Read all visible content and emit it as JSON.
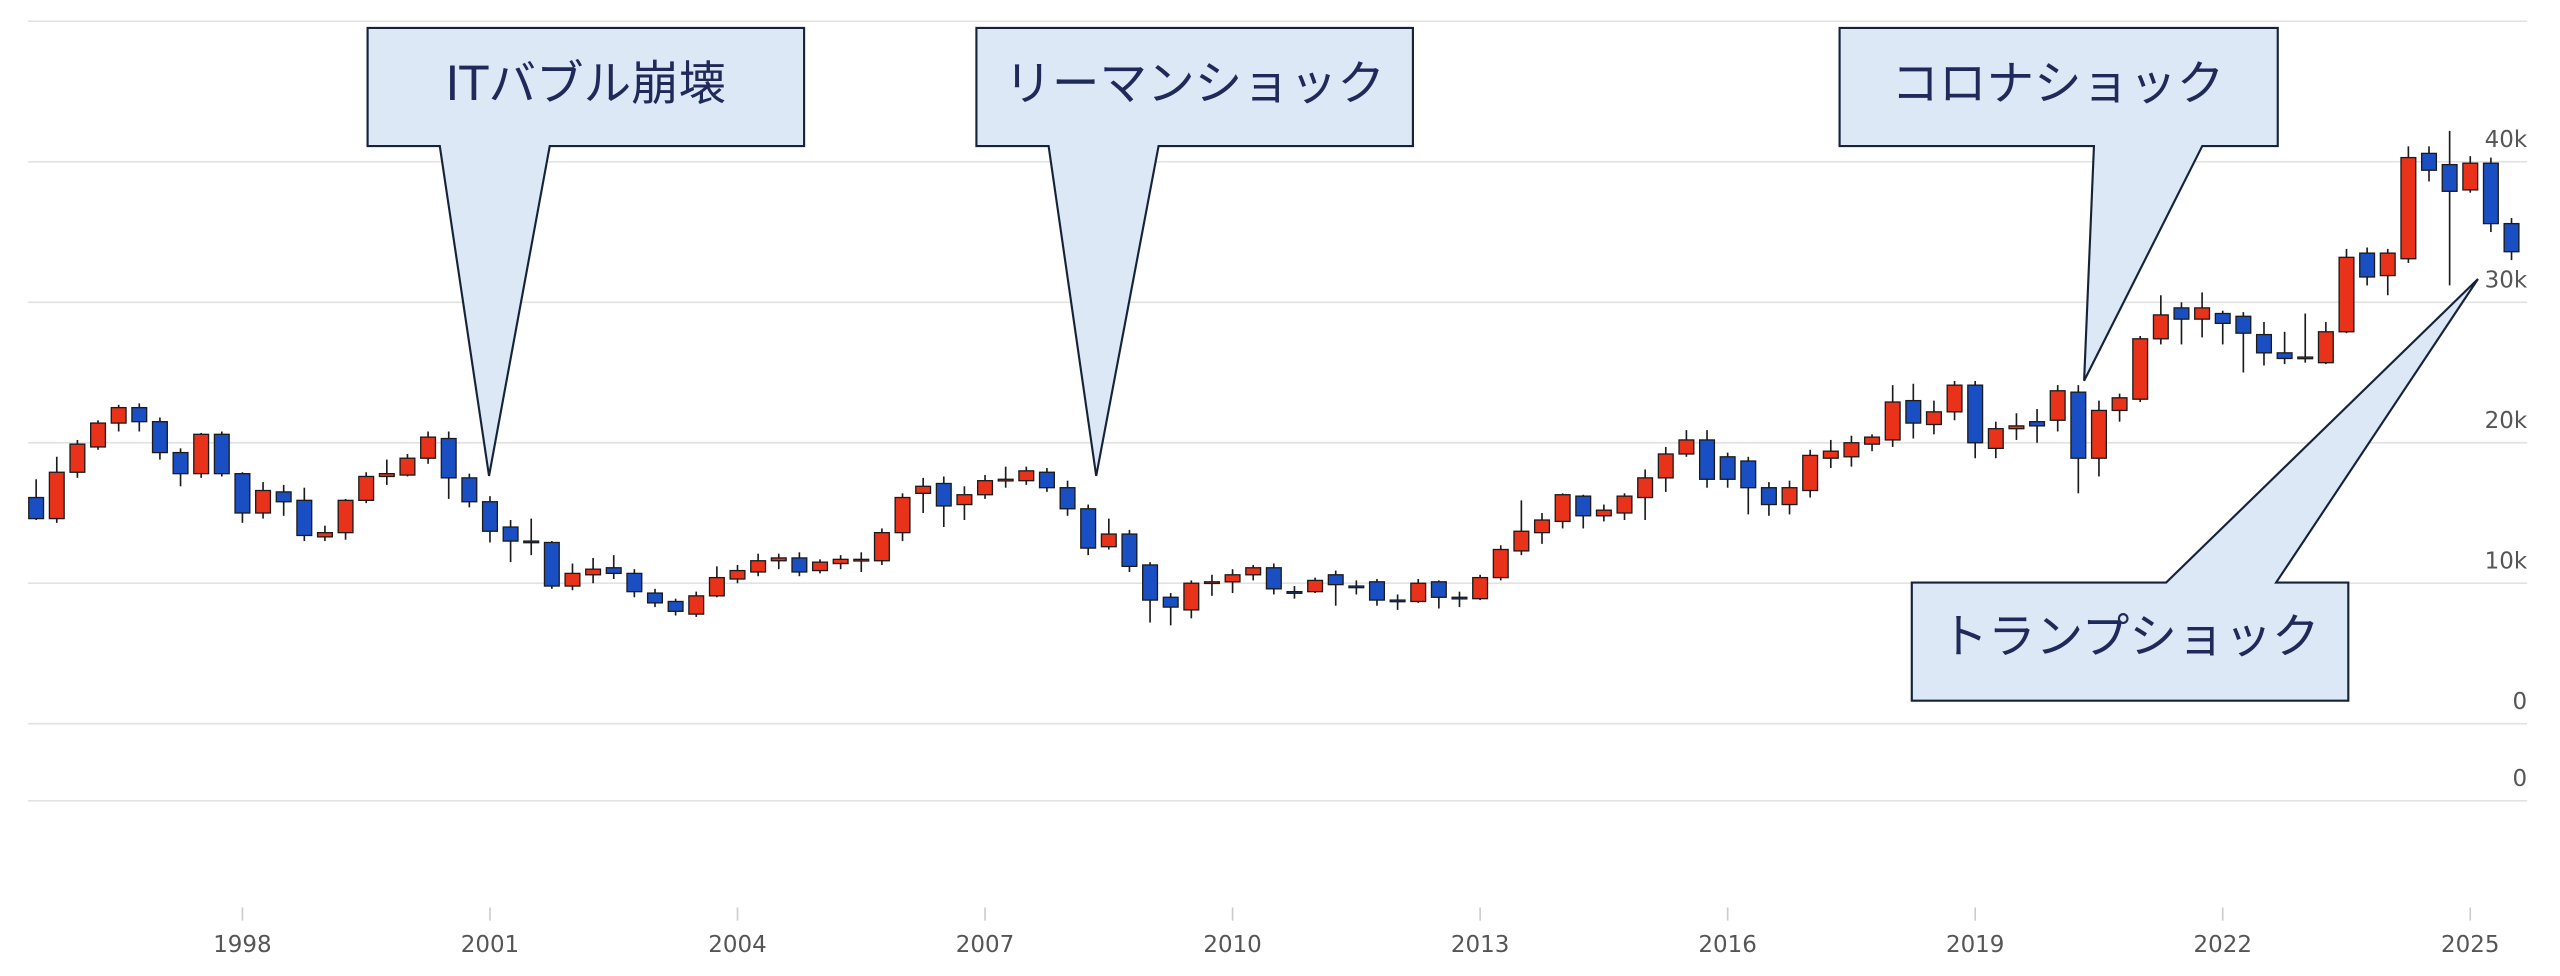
{
  "chart_data": {
    "type": "candlestick",
    "up_color": "#e8321a",
    "down_color": "#1a4fc4",
    "grid": true,
    "xlim": [
      1995.4,
      2025.65
    ],
    "xticks": [
      1998,
      2001,
      2004,
      2007,
      2010,
      2013,
      2016,
      2019,
      2022,
      2025
    ],
    "ylim": [
      0,
      50000
    ],
    "yticks": [
      {
        "value": 0,
        "label": "0"
      },
      {
        "value": 10000,
        "label": "10k"
      },
      {
        "value": 20000,
        "label": "20k"
      },
      {
        "value": 30000,
        "label": "30k"
      },
      {
        "value": 40000,
        "label": "40k"
      }
    ],
    "y2ticks": [
      0
    ],
    "annotations": [
      {
        "text": "ITバブル崩壊"
      },
      {
        "text": "リーマンショック"
      },
      {
        "text": "コロナショック"
      },
      {
        "text": "トランプショック"
      }
    ],
    "x": [
      1995.5,
      1995.75,
      1996,
      1996.25,
      1996.5,
      1996.75,
      1997,
      1997.25,
      1997.5,
      1997.75,
      1998,
      1998.25,
      1998.5,
      1998.75,
      1999,
      1999.25,
      1999.5,
      1999.75,
      2000,
      2000.25,
      2000.5,
      2000.75,
      2001,
      2001.25,
      2001.5,
      2001.75,
      2002,
      2002.25,
      2002.5,
      2002.75,
      2003,
      2003.25,
      2003.5,
      2003.75,
      2004,
      2004.25,
      2004.5,
      2004.75,
      2005,
      2005.25,
      2005.5,
      2005.75,
      2006,
      2006.25,
      2006.5,
      2006.75,
      2007,
      2007.25,
      2007.5,
      2007.75,
      2008,
      2008.25,
      2008.5,
      2008.75,
      2009,
      2009.25,
      2009.5,
      2009.75,
      2010,
      2010.25,
      2010.5,
      2010.75,
      2011,
      2011.25,
      2011.5,
      2011.75,
      2012,
      2012.25,
      2012.5,
      2012.75,
      2013,
      2013.25,
      2013.5,
      2013.75,
      2014,
      2014.25,
      2014.5,
      2014.75,
      2015,
      2015.25,
      2015.5,
      2015.75,
      2016,
      2016.25,
      2016.5,
      2016.75,
      2017,
      2017.25,
      2017.5,
      2017.75,
      2018,
      2018.25,
      2018.5,
      2018.75,
      2019,
      2019.25,
      2019.5,
      2019.75,
      2020,
      2020.25,
      2020.5,
      2020.75,
      2021,
      2021.25,
      2021.5,
      2021.75,
      2022,
      2022.25,
      2022.5,
      2022.75,
      2023,
      2023.25,
      2023.5,
      2023.75,
      2024,
      2024.25,
      2024.5,
      2024.75,
      2025,
      2025.25,
      2025.5
    ],
    "open": [
      16100,
      14600,
      17900,
      19700,
      21400,
      22500,
      21500,
      19300,
      17800,
      20600,
      17800,
      15000,
      16500,
      15900,
      13300,
      13600,
      15900,
      17600,
      17700,
      18900,
      20300,
      17500,
      15800,
      14000,
      13000,
      12900,
      9800,
      10600,
      11100,
      10700,
      9300,
      8700,
      7800,
      9100,
      10300,
      10800,
      11600,
      11800,
      10900,
      11400,
      11600,
      11600,
      13600,
      16400,
      17100,
      15600,
      16300,
      17300,
      17300,
      17900,
      16800,
      15300,
      12600,
      13500,
      11300,
      9000,
      8100,
      10000,
      10100,
      10600,
      11100,
      9400,
      9400,
      10600,
      9800,
      10100,
      8800,
      8700,
      10100,
      9000,
      8900,
      10400,
      12300,
      13600,
      14400,
      16200,
      14800,
      15000,
      16100,
      17500,
      19200,
      20200,
      19000,
      18700,
      16800,
      15600,
      16600,
      18900,
      19000,
      19900,
      20200,
      23000,
      21300,
      22200,
      24100,
      19600,
      21000,
      21500,
      21600,
      23600,
      18900,
      22300,
      23100,
      27400,
      29600,
      28800,
      29200,
      29000,
      27700,
      26400,
      26000,
      25700,
      27900,
      33500,
      31900,
      33100,
      40600,
      39800,
      38000,
      39900,
      35600
    ],
    "high": [
      17400,
      19000,
      20200,
      21600,
      22700,
      22800,
      21800,
      19600,
      20700,
      20800,
      17900,
      17200,
      17000,
      16800,
      14100,
      16000,
      17900,
      18800,
      19200,
      20800,
      20800,
      17800,
      16200,
      14500,
      14600,
      13000,
      11400,
      11800,
      12000,
      11000,
      9600,
      8900,
      9400,
      11200,
      11300,
      12100,
      12100,
      12200,
      11700,
      12000,
      12200,
      13900,
      16400,
      17500,
      17600,
      16900,
      17700,
      18300,
      18300,
      18200,
      17300,
      15600,
      14600,
      13800,
      11500,
      9300,
      10200,
      10600,
      11000,
      11300,
      11400,
      9800,
      10400,
      10900,
      10200,
      10300,
      9200,
      10300,
      10200,
      9400,
      10600,
      12700,
      15900,
      15000,
      16400,
      16300,
      15600,
      16400,
      18100,
      19700,
      20900,
      20900,
      19300,
      19000,
      17200,
      17300,
      19500,
      20200,
      20500,
      20600,
      24100,
      24200,
      23000,
      24400,
      24400,
      21500,
      22100,
      22400,
      24100,
      24100,
      23000,
      23500,
      27600,
      30500,
      30000,
      30700,
      29400,
      29300,
      28600,
      27900,
      29200,
      28600,
      33800,
      33900,
      33800,
      41100,
      41100,
      42200,
      40400,
      40300,
      36000
    ],
    "low": [
      14500,
      14300,
      17500,
      19500,
      20800,
      20800,
      18800,
      16900,
      17500,
      17600,
      14300,
      14600,
      14800,
      13000,
      13000,
      13100,
      15700,
      17000,
      17600,
      18500,
      16000,
      15400,
      12900,
      11500,
      12000,
      9600,
      9500,
      10000,
      10300,
      9000,
      8300,
      7700,
      7600,
      9000,
      10000,
      10500,
      11000,
      10500,
      10700,
      11000,
      10800,
      11300,
      13000,
      15000,
      14000,
      14500,
      16000,
      16800,
      17000,
      16500,
      14800,
      12000,
      12400,
      10800,
      7200,
      7000,
      7500,
      9100,
      9300,
      10200,
      9200,
      8900,
      9300,
      8400,
      9200,
      8400,
      8100,
      8600,
      8200,
      8300,
      8800,
      10200,
      12000,
      12800,
      13900,
      13900,
      14400,
      14500,
      14500,
      16500,
      19000,
      16800,
      16800,
      14900,
      14800,
      14900,
      16100,
      18200,
      18300,
      19400,
      19700,
      20300,
      20600,
      21600,
      18900,
      18900,
      20200,
      20000,
      20800,
      16400,
      17600,
      21500,
      22900,
      27000,
      27000,
      27500,
      27000,
      25000,
      25500,
      25600,
      25700,
      25600,
      27800,
      31200,
      30500,
      32800,
      38600,
      31200,
      37800,
      35000,
      33000
    ],
    "close": [
      14600,
      17900,
      19900,
      21400,
      22500,
      21500,
      19300,
      17800,
      20600,
      17800,
      15000,
      16600,
      15800,
      13400,
      13600,
      15900,
      17600,
      17800,
      18900,
      20400,
      17500,
      15800,
      13700,
      13000,
      12900,
      9800,
      10700,
      11000,
      10700,
      9400,
      8600,
      8000,
      9100,
      10400,
      10900,
      11600,
      11800,
      10800,
      11500,
      11700,
      11700,
      13600,
      16100,
      16900,
      15500,
      16300,
      17300,
      17400,
      18000,
      16800,
      15300,
      12500,
      13500,
      11200,
      8800,
      8300,
      10000,
      10100,
      10600,
      11100,
      9600,
      9300,
      10200,
      9900,
      9700,
      8800,
      8700,
      10000,
      9000,
      8900,
      10400,
      12400,
      13700,
      14500,
      16300,
      14800,
      15200,
      16200,
      17500,
      19200,
      20200,
      17400,
      17400,
      16800,
      15600,
      16800,
      19100,
      19400,
      20000,
      20400,
      22900,
      21400,
      22200,
      24100,
      20000,
      21000,
      21200,
      21200,
      23700,
      18900,
      22300,
      23200,
      27400,
      29100,
      28800,
      29600,
      28500,
      27800,
      26400,
      26000,
      26100,
      27900,
      33200,
      31800,
      33500,
      40300,
      39400,
      37900,
      39900,
      35600,
      33600
    ]
  }
}
